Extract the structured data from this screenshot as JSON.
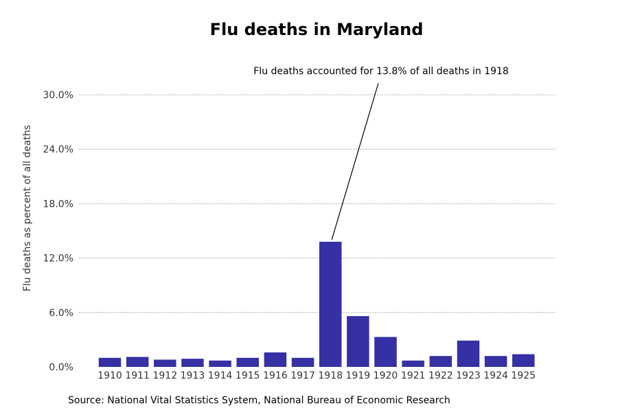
{
  "chart_data": {
    "type": "bar",
    "title": "Flu deaths in Maryland",
    "xlabel": "",
    "ylabel": "Flu deaths as percent of all deaths",
    "categories": [
      "1910",
      "1911",
      "1912",
      "1913",
      "1914",
      "1915",
      "1916",
      "1917",
      "1918",
      "1919",
      "1920",
      "1921",
      "1922",
      "1923",
      "1924",
      "1925"
    ],
    "values": [
      1.0,
      1.1,
      0.8,
      0.9,
      0.7,
      1.0,
      1.6,
      1.0,
      13.8,
      5.6,
      3.3,
      0.7,
      1.2,
      2.9,
      1.2,
      1.4
    ],
    "ylim": [
      0,
      30
    ],
    "yticks": [
      0,
      6,
      12,
      18,
      24,
      30
    ],
    "ytick_labels": [
      "0.0%",
      "6.0%",
      "12.0%",
      "18.0%",
      "24.0%",
      "30.0%"
    ],
    "grid": true,
    "bar_color": "#3530a3",
    "annotation": {
      "text": "Flu deaths accounted for 13.8% of all deaths in 1918",
      "target_category": "1918",
      "target_value": 13.8
    },
    "source": "Source: National Vital Statistics System, National Bureau of Economic Research"
  }
}
